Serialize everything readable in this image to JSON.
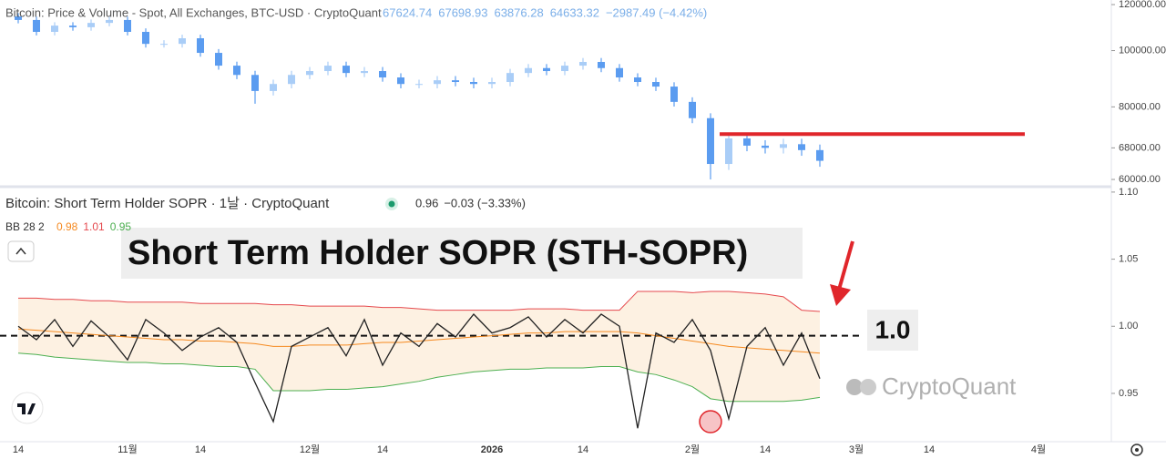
{
  "chart_data": [
    {
      "type": "candlestick",
      "title": "Bitcoin: Price & Volume - Spot, All Exchanges, BTC-USD · CryptoQuant",
      "header_values": [
        67624.74,
        67698.93,
        63876.28,
        64633.32,
        "−2987.49 (−4.42%)"
      ],
      "up_color": "#a9cdf7",
      "down_color": "#5b9cf0",
      "log_scale": true,
      "ylim": [
        58300,
        122200
      ],
      "yticks": [
        {
          "value": 120000,
          "label": "120000.00"
        },
        {
          "value": 100000,
          "label": "100000.00"
        },
        {
          "value": 80000,
          "label": "80000.00"
        },
        {
          "value": 68000,
          "label": "68000.00"
        },
        {
          "value": 60000,
          "label": "60000.00"
        }
      ],
      "open": [
        114500,
        112900,
        107700,
        110400,
        109700,
        111600,
        112900,
        107700,
        102700,
        102700,
        105000,
        99100,
        94200,
        90800,
        85200,
        87600,
        90800,
        92200,
        94200,
        91500,
        92200,
        89900,
        87600,
        87600,
        88900,
        88300,
        87600,
        88300,
        91500,
        93300,
        92200,
        94200,
        95600,
        93300,
        89900,
        88300,
        86700,
        81600,
        76500,
        63800,
        70600,
        68600,
        68000,
        69000,
        67400,
        null,
        null,
        null,
        null,
        null,
        null,
        null,
        null,
        null,
        null,
        null,
        null,
        null,
        null,
        null,
        null
      ],
      "high": [
        116000,
        114400,
        111900,
        111900,
        113100,
        114400,
        114400,
        109200,
        104200,
        106500,
        106500,
        100600,
        95700,
        92300,
        89100,
        92300,
        93700,
        95700,
        95700,
        93700,
        93700,
        91400,
        89100,
        90400,
        90400,
        89800,
        89800,
        93000,
        94800,
        94800,
        95700,
        97100,
        97100,
        94800,
        91400,
        89800,
        88200,
        83100,
        78000,
        72100,
        72100,
        70100,
        70500,
        70500,
        68900,
        null,
        null,
        null,
        null,
        null,
        null,
        null,
        null,
        null,
        null,
        null,
        null,
        null,
        null,
        null,
        null
      ],
      "low": [
        111400,
        106200,
        106200,
        108200,
        108200,
        110100,
        106200,
        101200,
        101200,
        101200,
        97600,
        92700,
        89300,
        81000,
        83700,
        86100,
        89300,
        90700,
        90000,
        90000,
        88400,
        86100,
        86100,
        86100,
        86800,
        86100,
        86100,
        86800,
        90000,
        90700,
        90700,
        92700,
        91800,
        88400,
        86800,
        85200,
        80100,
        75000,
        60000,
        62300,
        67100,
        66500,
        66500,
        65900,
        63100,
        null,
        null,
        null,
        null,
        null,
        null,
        null,
        null,
        null,
        null,
        null,
        null,
        null,
        null,
        null,
        null
      ],
      "close": [
        112900,
        107700,
        110400,
        109700,
        111600,
        112900,
        107700,
        102700,
        102700,
        105000,
        99100,
        94200,
        90800,
        85200,
        87600,
        90800,
        92200,
        94200,
        91500,
        92200,
        89900,
        87600,
        87600,
        88900,
        88300,
        87600,
        88300,
        91500,
        93300,
        92200,
        94200,
        95600,
        93300,
        89900,
        88300,
        86700,
        81600,
        76500,
        63800,
        70600,
        68600,
        68000,
        69000,
        67400,
        64600,
        null,
        null,
        null,
        null,
        null,
        null,
        null,
        null,
        null,
        null,
        null,
        null,
        null,
        null,
        null,
        null
      ],
      "hlines": [
        {
          "value": 71800,
          "color": "#e0262b"
        }
      ]
    },
    {
      "type": "line",
      "title": "Bitcoin: Short Term Holder SOPR · 1날 · CryptoQuant",
      "header_values": [
        0.96,
        "−0.03 (−3.33%)"
      ],
      "bb_label": "BB 28 2",
      "bb_values": [
        0.98,
        1.01,
        0.95
      ],
      "annotation": "Short Term Holder SOPR (STH-SOPR)",
      "level": {
        "value": 0.993,
        "label": "1.0"
      },
      "watermark": "CryptoQuant",
      "ylim": [
        0.914,
        1.104
      ],
      "yticks": [
        {
          "value": 1.1,
          "label": "1.10"
        },
        1.05,
        {
          "value": 1,
          "label": "1.00"
        },
        0.95
      ],
      "categories": [
        "14",
        null,
        null,
        null,
        null,
        null,
        "11월",
        null,
        null,
        null,
        "14",
        null,
        null,
        null,
        null,
        null,
        "12월",
        null,
        null,
        null,
        "14",
        null,
        null,
        null,
        null,
        null,
        "2026",
        null,
        null,
        null,
        null,
        "14",
        null,
        null,
        null,
        null,
        null,
        "2월",
        null,
        null,
        null,
        "14",
        null,
        null,
        null,
        null,
        "3월",
        null,
        null,
        null,
        "14",
        null,
        null,
        null,
        null,
        null,
        "4월",
        null,
        null,
        null,
        null
      ],
      "series": [
        {
          "color": "#e5484d",
          "values": [
            1.021,
            1.021,
            1.02,
            1.02,
            1.019,
            1.019,
            1.018,
            1.018,
            1.018,
            1.018,
            1.017,
            1.017,
            1.017,
            1.017,
            1.016,
            1.016,
            1.015,
            1.015,
            1.015,
            1.015,
            1.014,
            1.014,
            1.013,
            1.012,
            1.012,
            1.012,
            1.012,
            1.012,
            1.013,
            1.013,
            1.013,
            1.012,
            1.012,
            1.012,
            1.026,
            1.026,
            1.026,
            1.025,
            1.026,
            1.026,
            1.025,
            1.024,
            1.022,
            1.012,
            1.011,
            null,
            null,
            null,
            null,
            null,
            null,
            null,
            null,
            null,
            null,
            null,
            null,
            null,
            null,
            null,
            null
          ]
        },
        {
          "color": "#f5891f",
          "values": [
            0.998,
            0.997,
            0.996,
            0.995,
            0.994,
            0.993,
            0.992,
            0.991,
            0.99,
            0.99,
            0.989,
            0.989,
            0.988,
            0.987,
            0.985,
            0.985,
            0.986,
            0.986,
            0.986,
            0.987,
            0.988,
            0.988,
            0.989,
            0.99,
            0.991,
            0.992,
            0.993,
            0.994,
            0.995,
            0.995,
            0.996,
            0.996,
            0.996,
            0.996,
            0.995,
            0.993,
            0.991,
            0.989,
            0.987,
            0.985,
            0.984,
            0.983,
            0.982,
            0.981,
            0.98,
            null,
            null,
            null,
            null,
            null,
            null,
            null,
            null,
            null,
            null,
            null,
            null,
            null,
            null,
            null,
            null
          ]
        },
        {
          "color": "#4caf50",
          "values": [
            0.98,
            0.979,
            0.977,
            0.976,
            0.975,
            0.974,
            0.973,
            0.973,
            0.972,
            0.972,
            0.971,
            0.97,
            0.97,
            0.968,
            0.952,
            0.952,
            0.952,
            0.953,
            0.953,
            0.954,
            0.955,
            0.957,
            0.959,
            0.962,
            0.964,
            0.966,
            0.967,
            0.968,
            0.968,
            0.969,
            0.969,
            0.969,
            0.97,
            0.97,
            0.966,
            0.964,
            0.96,
            0.955,
            0.946,
            0.944,
            0.944,
            0.944,
            0.944,
            0.945,
            0.947,
            null,
            null,
            null,
            null,
            null,
            null,
            null,
            null,
            null,
            null,
            null,
            null,
            null,
            null,
            null,
            null
          ]
        },
        {
          "color": "#222222",
          "values": [
            1.0,
            0.99,
            1.005,
            0.985,
            1.004,
            0.992,
            0.975,
            1.005,
            0.995,
            0.982,
            0.992,
            0.999,
            0.988,
            0.958,
            0.929,
            0.985,
            0.992,
            0.999,
            0.978,
            1.005,
            0.971,
            0.995,
            0.985,
            1.002,
            0.992,
            1.009,
            0.995,
            0.999,
            1.007,
            0.992,
            1.005,
            0.995,
            1.009,
            1.0,
            0.924,
            0.995,
            0.988,
            1.005,
            0.982,
            0.931,
            0.985,
            0.999,
            0.971,
            0.995,
            0.961,
            null,
            null,
            null,
            null,
            null,
            null,
            null,
            null,
            null,
            null,
            null,
            null,
            null,
            null,
            null,
            null
          ]
        }
      ],
      "band_fill": "#fdf1e2"
    }
  ]
}
